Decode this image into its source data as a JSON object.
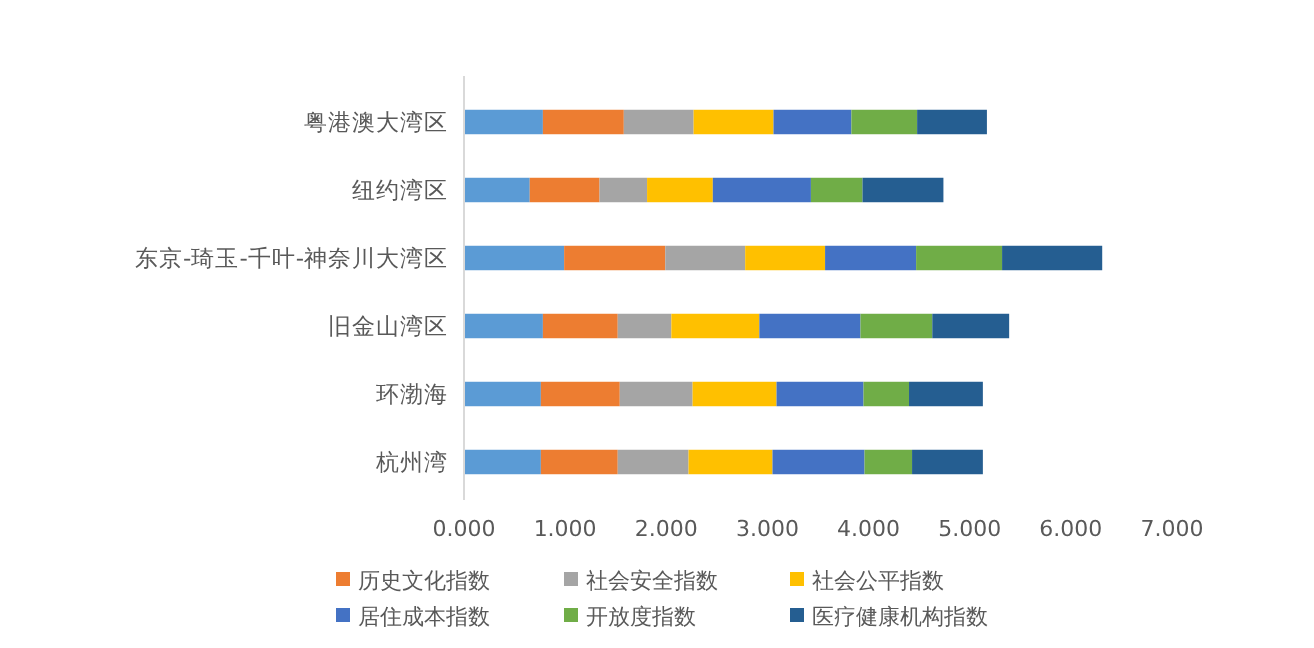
{
  "chart_data": {
    "type": "bar",
    "orientation": "horizontal",
    "stacked": true,
    "legend": "bottom",
    "grid": false,
    "categories": [
      "粤港澳大湾区",
      "纽约湾区",
      "东京-琦玉-千叶-神奈川大湾区",
      "旧金山湾区",
      "环渤海",
      "杭州湾"
    ],
    "xlim": [
      0,
      7
    ],
    "xticks": [
      {
        "value": 0,
        "label": "0.000"
      },
      {
        "value": 1,
        "label": "1.000"
      },
      {
        "value": 2,
        "label": "2.000"
      },
      {
        "value": 3,
        "label": "3.000"
      },
      {
        "value": 4,
        "label": "4.000"
      },
      {
        "value": 5,
        "label": "5.000"
      },
      {
        "value": 6,
        "label": "6.000"
      },
      {
        "value": 7,
        "label": "7.000"
      }
    ],
    "series": [
      {
        "color": "#5b9bd5",
        "values": [
          0.78,
          0.65,
          0.99,
          0.78,
          0.76,
          0.76
        ]
      },
      {
        "name": "历史文化指数",
        "color": "#ed7d31",
        "values": [
          0.8,
          0.69,
          1.0,
          0.74,
          0.78,
          0.76
        ]
      },
      {
        "name": "社会安全指数",
        "color": "#a5a5a5",
        "values": [
          0.69,
          0.47,
          0.79,
          0.53,
          0.72,
          0.7
        ]
      },
      {
        "name": "社会公平指数",
        "color": "#ffc000",
        "values": [
          0.79,
          0.65,
          0.79,
          0.87,
          0.83,
          0.83
        ]
      },
      {
        "name": "居住成本指数",
        "color": "#4472c4",
        "values": [
          0.77,
          0.97,
          0.9,
          1.0,
          0.86,
          0.91
        ]
      },
      {
        "name": "开放度指数",
        "color": "#70ad47",
        "values": [
          0.65,
          0.51,
          0.85,
          0.71,
          0.45,
          0.47
        ]
      },
      {
        "name": "医疗健康机构指数",
        "color": "#255e91",
        "values": [
          0.69,
          0.8,
          0.99,
          0.76,
          0.73,
          0.7
        ]
      }
    ]
  }
}
